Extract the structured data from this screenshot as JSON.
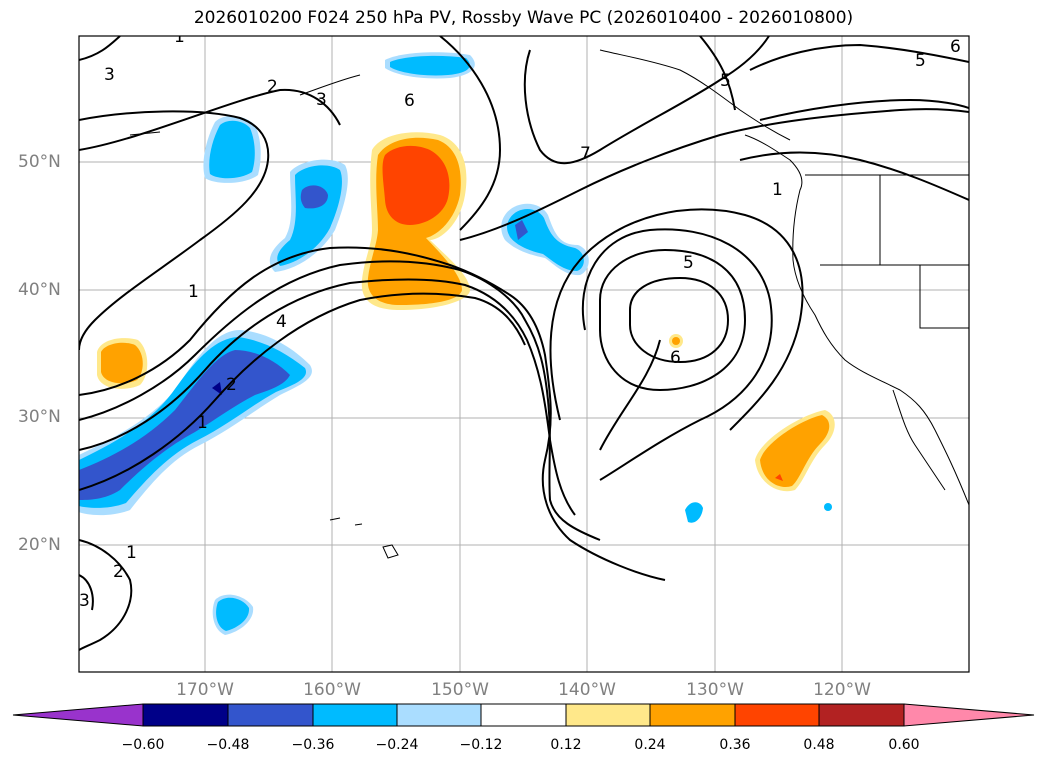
{
  "title": "2026010200 F024 250 hPa PV, Rossby Wave PC (2026010400 - 2026010800)",
  "lat_labels": [
    "50°N",
    "40°N",
    "30°N",
    "20°N"
  ],
  "lon_labels": [
    "170°W",
    "160°W",
    "150°W",
    "140°W",
    "130°W",
    "120°W"
  ],
  "colorbar": {
    "ticks": [
      "−0.60",
      "−0.48",
      "−0.36",
      "−0.24",
      "−0.12",
      "0.12",
      "0.24",
      "0.36",
      "0.48",
      "0.60"
    ],
    "colors": [
      "#9933cc",
      "#000088",
      "#3355cc",
      "#00bbff",
      "#aaddff",
      "#ffffff",
      "#ffe88a",
      "#ffa200",
      "#ff4400",
      "#b22222",
      "#ff88aa"
    ]
  },
  "contour_labels": [
    "1",
    "2",
    "3",
    "4",
    "5",
    "6",
    "7",
    "1",
    "2",
    "3",
    "5",
    "6",
    "5",
    "6",
    "1",
    "1",
    "2",
    "3",
    "1"
  ],
  "colors": {
    "contour": "#000000",
    "grid": "#b0b0b0",
    "coast": "#000000"
  }
}
